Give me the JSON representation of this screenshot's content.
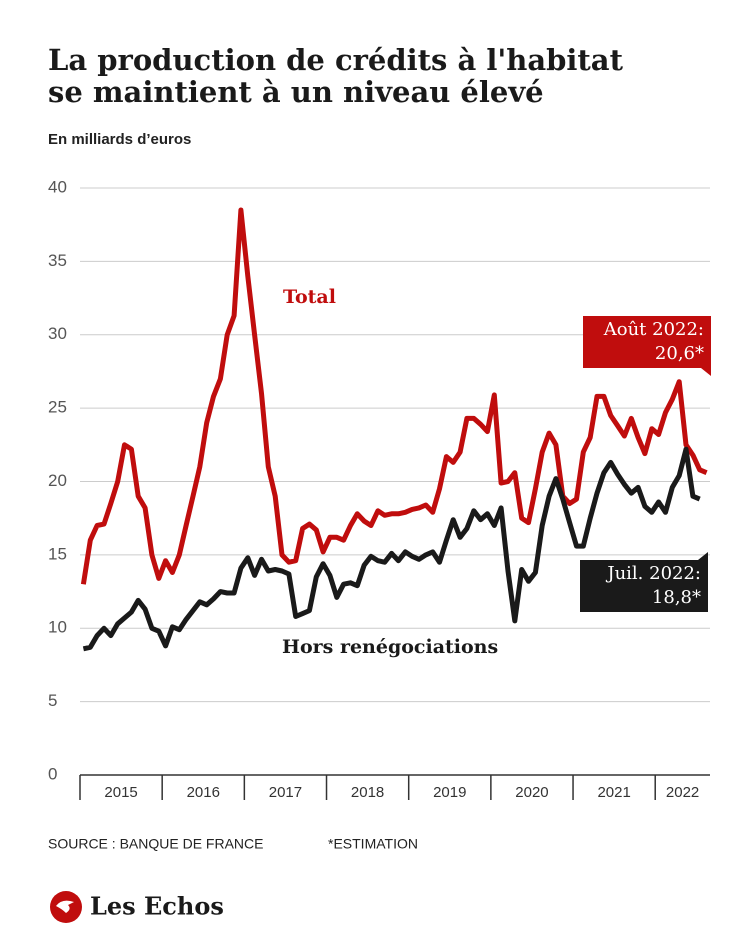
{
  "title": [
    "La production de crédits à l'habitat",
    "se maintient à un niveau élevé"
  ],
  "source": "SOURCE : BANQUE DE FRANCE",
  "note": "*ESTIMATION",
  "logo": "Les Echos",
  "chart_data": {
    "type": "line",
    "subtitle": "En milliards d’euros",
    "categories": [
      null,
      null,
      null,
      null,
      null,
      null,
      "2015",
      null,
      null,
      null,
      null,
      null,
      null,
      null,
      null,
      null,
      null,
      null,
      "2016",
      null,
      null,
      null,
      null,
      null,
      null,
      null,
      null,
      null,
      null,
      null,
      "2017",
      null,
      null,
      null,
      null,
      null,
      null,
      null,
      null,
      null,
      null,
      null,
      "2018",
      null,
      null,
      null,
      null,
      null,
      null,
      null,
      null,
      null,
      null,
      null,
      "2019",
      null,
      null,
      null,
      null,
      null,
      null,
      null,
      null,
      null,
      null,
      null,
      "2020",
      null,
      null,
      null,
      null,
      null,
      null,
      null,
      null,
      null,
      null,
      null,
      "2021",
      null,
      null,
      null,
      null,
      null,
      null,
      null,
      null,
      null,
      "2022",
      null,
      null,
      null
    ],
    "series": [
      {
        "name": "Total",
        "color": "#c00d0d",
        "values": [
          13,
          16,
          17,
          17.1,
          18.5,
          20,
          22.5,
          22.2,
          19,
          18.2,
          15,
          13.4,
          14.6,
          13.8,
          15,
          17,
          19,
          21,
          24,
          25.8,
          27,
          30,
          31.3,
          38.5,
          34,
          30,
          26,
          21,
          19,
          15,
          14.5,
          14.6,
          16.8,
          17.1,
          16.7,
          15.2,
          16.2,
          16.2,
          16,
          17,
          17.8,
          17.3,
          17,
          18,
          17.7,
          17.8,
          17.8,
          17.9,
          18.1,
          18.2,
          18.4,
          17.9,
          19.5,
          21.7,
          21.3,
          22,
          24.3,
          24.3,
          23.9,
          23.4,
          25.9,
          19.9,
          20,
          20.6,
          17.5,
          17.2,
          19.5,
          22,
          23.3,
          22.5,
          19,
          18.5,
          18.8,
          22,
          23,
          25.8,
          25.8,
          24.5,
          23.8,
          23.1,
          24.3,
          23,
          21.9,
          23.6,
          23.2,
          24.7,
          25.6,
          26.8,
          22.5,
          21.8,
          20.8,
          20.6
        ]
      },
      {
        "name": "Hors renégociations",
        "color": "#1a1a1a",
        "values": [
          8.6,
          8.7,
          9.5,
          10,
          9.5,
          10.3,
          10.7,
          11.1,
          11.9,
          11.3,
          10,
          9.8,
          8.8,
          10.1,
          9.9,
          10.6,
          11.2,
          11.8,
          11.6,
          12,
          12.5,
          12.4,
          12.4,
          14.1,
          14.8,
          13.6,
          14.7,
          13.9,
          14,
          13.9,
          13.7,
          10.8,
          11,
          11.2,
          13.5,
          14.4,
          13.6,
          12.1,
          13,
          13.1,
          12.9,
          14.3,
          14.9,
          14.6,
          14.5,
          15.1,
          14.6,
          15.2,
          14.9,
          14.7,
          15,
          15.2,
          14.5,
          16,
          17.4,
          16.2,
          16.8,
          18,
          17.4,
          17.8,
          17,
          18.2,
          13.9,
          10.5,
          14,
          13.2,
          13.8,
          17,
          19,
          20.2,
          18.8,
          17.2,
          15.6,
          15.6,
          17.5,
          19.2,
          20.6,
          21.3,
          20.5,
          19.8,
          19.2,
          19.6,
          18.3,
          17.9,
          18.6,
          17.9,
          19.6,
          20.4,
          22.2,
          19,
          18.8,
          null
        ]
      }
    ],
    "annotations": [
      [
        "Août 2022:",
        "20,6*"
      ],
      [
        "Juil. 2022:",
        "18,8*"
      ]
    ],
    "ylim": [
      0,
      40
    ],
    "yticks": [
      0,
      5,
      10,
      15,
      20,
      25,
      30,
      35,
      40
    ],
    "grid": true
  }
}
